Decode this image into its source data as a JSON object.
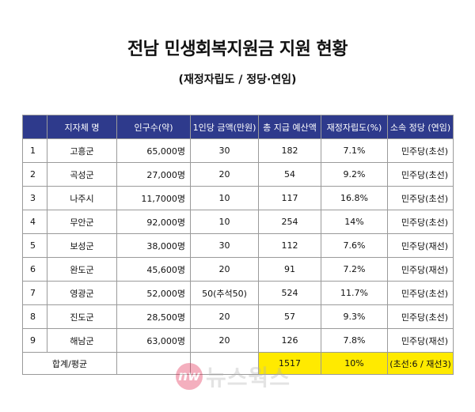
{
  "title": "전남 민생회복지원금 지원 현황",
  "subtitle": "(재정자립도 / 정당·연임)",
  "table": {
    "headers": [
      "",
      "지자체 명",
      "인구수(약)",
      "1인당 금액(만원)",
      "총 지급 예산액",
      "재정자립도(%)",
      "소속 정당 (연임)"
    ],
    "rows": [
      [
        "1",
        "고흥군",
        "65,000명",
        "30",
        "182",
        "7.1%",
        "민주당(초선)"
      ],
      [
        "2",
        "곡성군",
        "27,000명",
        "20",
        "54",
        "9.2%",
        "민주당(초선)"
      ],
      [
        "3",
        "나주시",
        "11,7000명",
        "10",
        "117",
        "16.8%",
        "민주당(초선)"
      ],
      [
        "4",
        "무안군",
        "92,000명",
        "10",
        "254",
        "14%",
        "민주당(초선)"
      ],
      [
        "5",
        "보성군",
        "38,000명",
        "30",
        "112",
        "7.6%",
        "민주당(재선)"
      ],
      [
        "6",
        "완도군",
        "45,600명",
        "20",
        "91",
        "7.2%",
        "민주당(재선)"
      ],
      [
        "7",
        "영광군",
        "52,000명",
        "50(추석50)",
        "524",
        "11.7%",
        "민주당(초선)"
      ],
      [
        "8",
        "진도군",
        "28,500명",
        "20",
        "57",
        "9.3%",
        "민주당(초선)"
      ],
      [
        "9",
        "해남군",
        "63,000명",
        "20",
        "126",
        "7.8%",
        "민주당(재선)"
      ]
    ],
    "summary": {
      "label": "합계/평균",
      "population": "",
      "per_person": "",
      "total_budget": "1517",
      "self_reliance": "10%",
      "party": "(초선:6 / 재선3)"
    }
  },
  "watermark": {
    "logo": "nw",
    "text": "뉴스웍스"
  },
  "colors": {
    "header_bg": "#2e3a8c",
    "highlight": "#ffea00",
    "watermark_logo": "#e11d48"
  }
}
